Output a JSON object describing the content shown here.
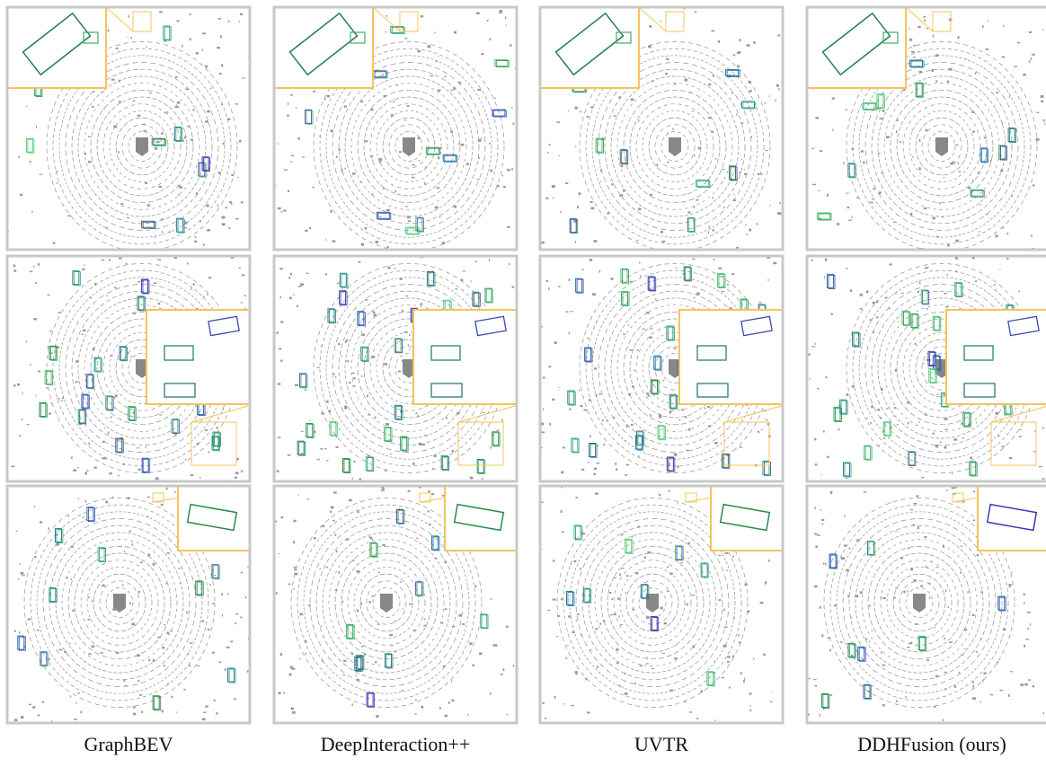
{
  "columns": [
    {
      "label": "GraphBEV"
    },
    {
      "label": "DeepInteraction++"
    },
    {
      "label": "UVTR"
    },
    {
      "label": "DDHFusion (ours)"
    }
  ]
}
